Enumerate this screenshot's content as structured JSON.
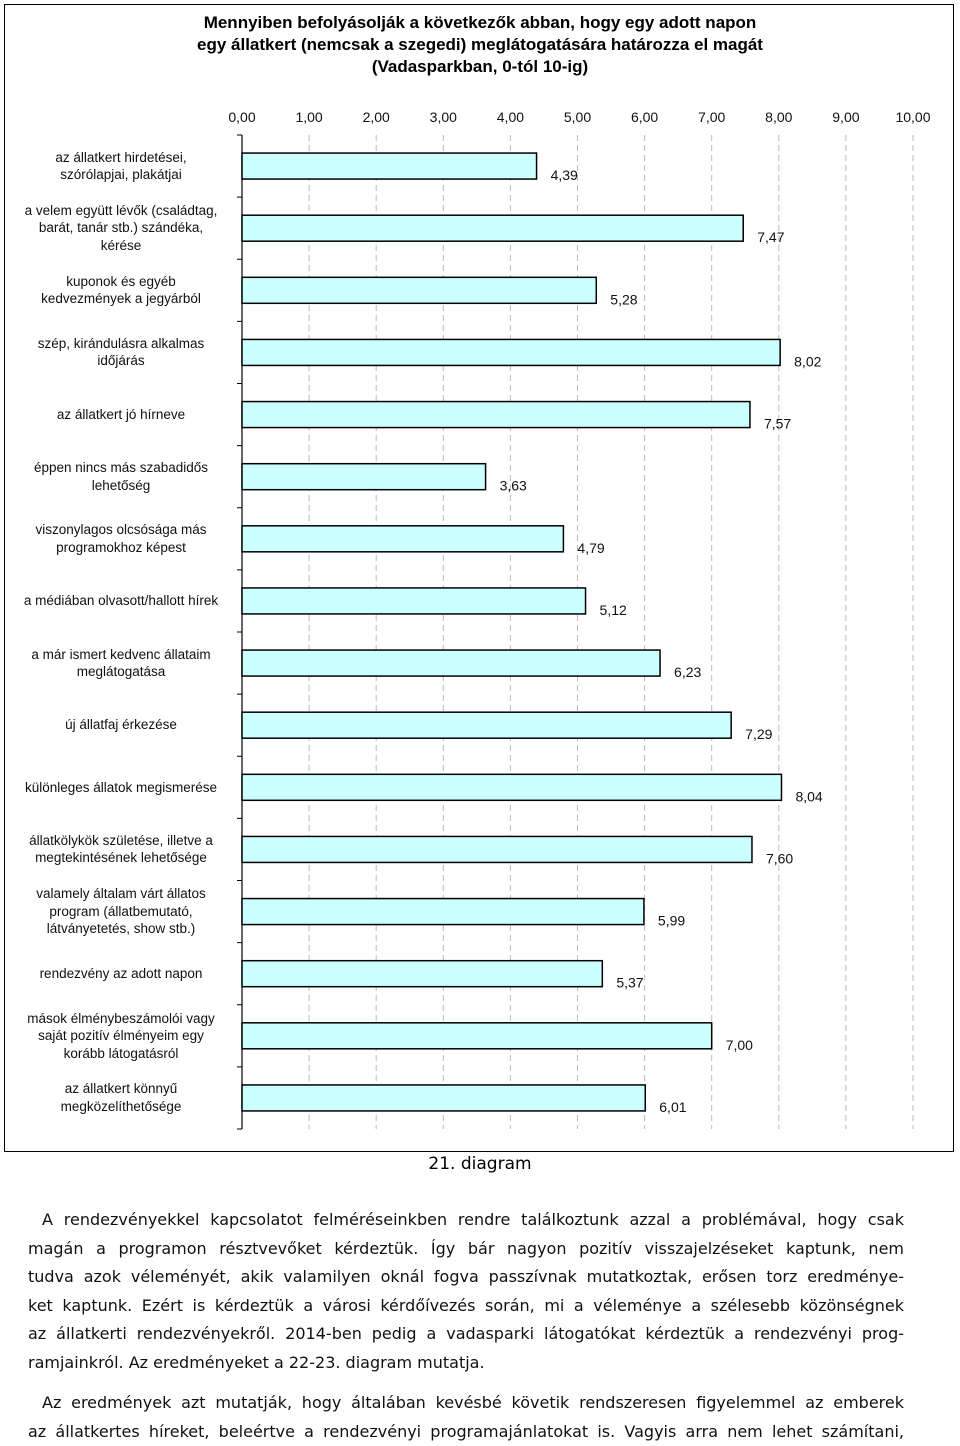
{
  "title_lines": [
    "Mennyiben befolyásolják a következők abban, hogy egy adott napon",
    "egy állatkert (nemcsak a szegedi) meglátogatására határozza el magát",
    "(Vadasparkban, 0-tól 10-ig)"
  ],
  "caption": "21. diagram",
  "paragraph1_lines": [
    "A rendezvényekkel kapcsolatot felméréseinkben rendre találkoztunk azzal a problémával, hogy csak",
    "magán a programon résztvevőket kérdeztük. Így bár nagyon pozitív visszajelzéseket kaptunk, nem",
    "tudva azok véleményét, akik valamilyen oknál fogva passzívnak mutatkoztak, erősen torz eredménye-",
    "ket kaptunk. Ezért is kérdeztük a városi kérdőívezés során, mi a véleménye a szélesebb közönségnek",
    "az állatkerti rendezvényekről. 2014-ben pedig a vadasparki látogatókat kérdeztük a rendezvényi prog-",
    "ramjainkról. Az eredményeket a 22-23. diagram mutatja."
  ],
  "paragraph2_lines": [
    "Az eredmények azt mutatják, hogy általában kevésbé követik rendszeresen figyelemmel az emberek",
    "az állatkertes híreket, beleértve a rendezvényi programajánlatokat is. Vagyis arra nem lehet számítani,"
  ],
  "colors": {
    "bar_fill": "#ccffff",
    "bar_stroke": "#000000",
    "grid": "#bbbbbb"
  },
  "chart_data": {
    "type": "bar",
    "orientation": "horizontal",
    "title": "Mennyiben befolyásolják a következők abban, hogy egy adott napon egy állatkert (nemcsak a szegedi) meglátogatására határozza el magát (Vadasparkban, 0-tól 10-ig)",
    "xlim": [
      0,
      10
    ],
    "ticks": [
      "0,00",
      "1,00",
      "2,00",
      "3,00",
      "4,00",
      "5,00",
      "6,00",
      "7,00",
      "8,00",
      "9,00",
      "10,00"
    ],
    "tick_values": [
      0,
      1,
      2,
      3,
      4,
      5,
      6,
      7,
      8,
      9,
      10
    ],
    "grid": true,
    "categories": [
      [
        "az állatkert hirdetései,",
        "szórólapjai, plakátjai"
      ],
      [
        "a velem együtt lévők (családtag,",
        "barát, tanár stb.) szándéka,",
        "kérése"
      ],
      [
        "kuponok és egyéb",
        "kedvezmények a jegyárból"
      ],
      [
        "szép, kirándulásra alkalmas",
        "időjárás"
      ],
      [
        "az állatkert jó hírneve"
      ],
      [
        "éppen nincs más szabadidős",
        "lehetőség"
      ],
      [
        "viszonylagos olcsósága más",
        "programokhoz képest"
      ],
      [
        "a médiában olvasott/hallott hírek"
      ],
      [
        "a már ismert kedvenc állataim",
        "meglátogatása"
      ],
      [
        "új állatfaj érkezése"
      ],
      [
        "különleges állatok megismerése"
      ],
      [
        "állatkölykök születése, illetve a",
        "megtekintésének lehetősége"
      ],
      [
        "valamely általam várt állatos",
        "program (állatbemutató,",
        "látványetetés, show stb.)"
      ],
      [
        "rendezvény az adott napon"
      ],
      [
        "mások élménybeszámolói vagy",
        "saját pozitív élményeim egy",
        "korább látogatásról"
      ],
      [
        "az állatkert könnyű",
        "megközelíthetősége"
      ]
    ],
    "values": [
      4.39,
      7.47,
      5.28,
      8.02,
      7.57,
      3.63,
      4.79,
      5.12,
      6.23,
      7.29,
      8.04,
      7.6,
      5.99,
      5.37,
      7.0,
      6.01
    ],
    "value_labels": [
      "4,39",
      "7,47",
      "5,28",
      "8,02",
      "7,57",
      "3,63",
      "4,79",
      "5,12",
      "6,23",
      "7,29",
      "8,04",
      "7,60",
      "5,99",
      "5,37",
      "7,00",
      "6,01"
    ]
  }
}
